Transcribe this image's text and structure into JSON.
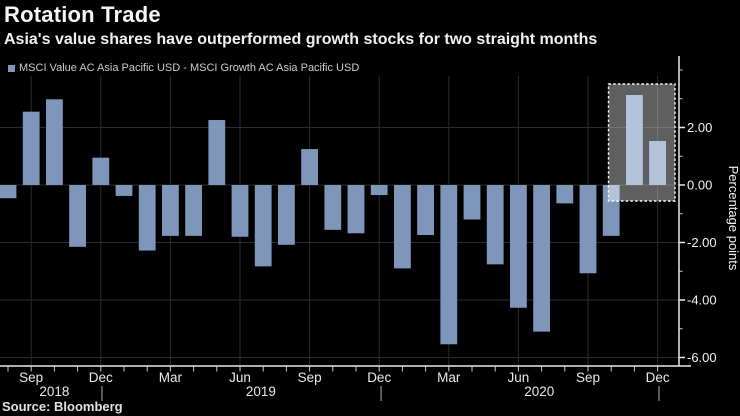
{
  "header": {
    "title": "Rotation Trade",
    "subtitle": "Asia's value shares have outperformed growth stocks for two straight months",
    "legend_label": "MSCI Value AC Asia Pacific USD - MSCI Growth AC Asia Pacific USD"
  },
  "source": "Source: Bloomberg",
  "colors": {
    "background": "#000000",
    "bar": "#7e96ba",
    "bar_highlight": "#b3c3d9",
    "box_fill": "#5f5f5f",
    "box_border": "#fafafa",
    "grid": "#2b2b2b",
    "grid_in_box": "#747474",
    "axis": "#e9e9e9",
    "tick": "#cfcfcf",
    "text": "#f2f2f2"
  },
  "chart_data": {
    "type": "bar",
    "title": "Rotation Trade",
    "subtitle": "Asia's value shares have outperformed growth stocks for two straight months",
    "legend": "MSCI Value AC Asia Pacific USD - MSCI Growth AC Asia Pacific USD",
    "ylabel": "Percentage points",
    "ylim": [
      -6.3,
      3.8
    ],
    "grid": true,
    "legend_position": "top-left",
    "y_major_ticks": [
      2,
      0,
      -2,
      -4,
      -6
    ],
    "y_major_tick_labels": [
      "2.00",
      "0.00",
      "-2.00",
      "-4.00",
      "-6.00"
    ],
    "y_minor_ticks": [
      4,
      3,
      1,
      -1,
      -3,
      -5
    ],
    "x": [
      "Aug 2018",
      "Sep 2018",
      "Oct 2018",
      "Nov 2018",
      "Dec 2018",
      "Jan 2019",
      "Feb 2019",
      "Mar 2019",
      "Apr 2019",
      "May 2019",
      "Jun 2019",
      "Jul 2019",
      "Aug 2019",
      "Sep 2019",
      "Oct 2019",
      "Nov 2019",
      "Dec 2019",
      "Jan 2020",
      "Feb 2020",
      "Mar 2020",
      "Apr 2020",
      "May 2020",
      "Jun 2020",
      "Jul 2020",
      "Aug 2020",
      "Sep 2020",
      "Oct 2020",
      "Nov 2020",
      "Dec 2020"
    ],
    "values": [
      -0.46,
      2.55,
      2.98,
      -2.15,
      0.95,
      -0.38,
      -2.28,
      -1.77,
      -1.77,
      2.26,
      -1.8,
      -2.83,
      -2.08,
      1.25,
      -1.56,
      -1.68,
      -0.35,
      -2.9,
      -1.74,
      -5.54,
      -1.2,
      -2.76,
      -4.27,
      -5.1,
      -0.64,
      -3.07,
      -1.77,
      3.13,
      1.53
    ],
    "x_tick_labels": [
      {
        "index": 1,
        "label": "Sep"
      },
      {
        "index": 4,
        "label": "Dec"
      },
      {
        "index": 7,
        "label": "Mar"
      },
      {
        "index": 10,
        "label": "Jun"
      },
      {
        "index": 13,
        "label": "Sep"
      },
      {
        "index": 16,
        "label": "Dec"
      },
      {
        "index": 19,
        "label": "Mar"
      },
      {
        "index": 22,
        "label": "Jun"
      },
      {
        "index": 25,
        "label": "Sep"
      },
      {
        "index": 28,
        "label": "Dec"
      }
    ],
    "year_labels": [
      {
        "label": "2018",
        "index": 2.0
      },
      {
        "label": "2019",
        "index": 10.9
      },
      {
        "label": "2020",
        "index": 22.9
      }
    ],
    "year_divider_indices": [
      4.05,
      16.08,
      28.06
    ],
    "highlight": {
      "months": [
        "Nov 2020",
        "Dec 2020"
      ],
      "note": "gray box with white dashed border around the last two (positive) bars"
    }
  }
}
